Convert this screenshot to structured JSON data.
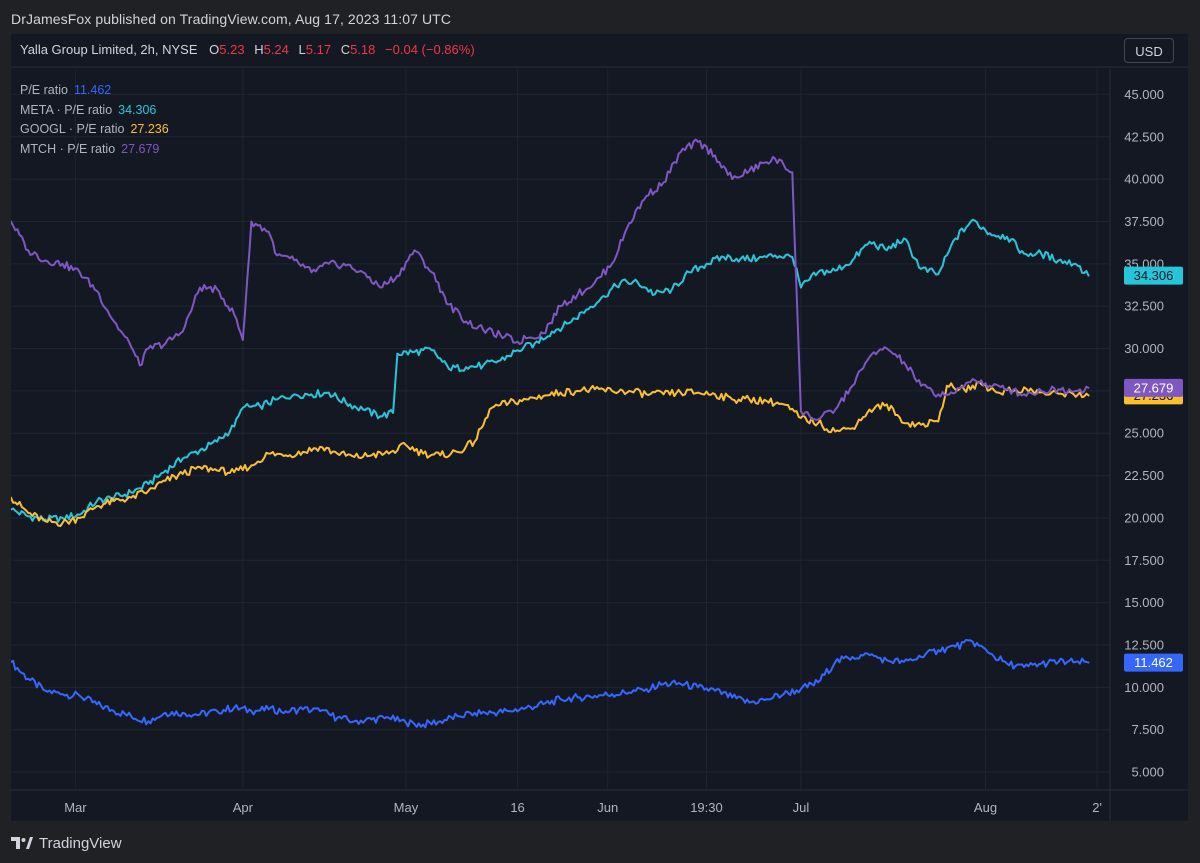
{
  "banner": "DrJamesFox published on TradingView.com, Aug 17, 2023 11:07 UTC",
  "header": {
    "symbol": "Yalla Group Limited, 2h, NYSE",
    "open_label": "O",
    "open": "5.23",
    "high_label": "H",
    "high": "5.24",
    "low_label": "L",
    "low": "5.17",
    "close_label": "C",
    "close": "5.18",
    "change": "−0.04 (−0.86%)"
  },
  "currency_button": "USD",
  "legend": [
    {
      "name": "P/E ratio",
      "value": "11.462",
      "color": "#3567ff"
    },
    {
      "name": "META · P/E ratio",
      "value": "34.306",
      "color": "#26c6da"
    },
    {
      "name": "GOOGL · P/E ratio",
      "value": "27.236",
      "color": "#fbc02d"
    },
    {
      "name": "MTCH · P/E ratio",
      "value": "27.679",
      "color": "#7e57c2"
    }
  ],
  "footer": {
    "brand": "TradingView"
  },
  "chart_data": {
    "type": "line",
    "y_ticks": [
      "45.000",
      "42.500",
      "40.000",
      "37.500",
      "35.000",
      "32.500",
      "30.000",
      "27.500",
      "25.000",
      "22.500",
      "20.000",
      "17.500",
      "15.000",
      "12.500",
      "10.000",
      "7.500",
      "5.000"
    ],
    "ylim": [
      4.0,
      46.5
    ],
    "x_ticks": [
      {
        "label": "Mar",
        "x": 15
      },
      {
        "label": "Apr",
        "x": 54
      },
      {
        "label": "May",
        "x": 92
      },
      {
        "label": "16",
        "x": 118
      },
      {
        "label": "Jun",
        "x": 139
      },
      {
        "label": "19:30",
        "x": 162
      },
      {
        "label": "Jul",
        "x": 184
      },
      {
        "label": "Aug",
        "x": 227
      },
      {
        "label": "2'",
        "x": 253
      }
    ],
    "xlim": [
      0,
      256
    ],
    "grid": true,
    "series": [
      {
        "name": "P/E ratio",
        "color": "#3567ff",
        "last": 11.462,
        "last_label": "11.462",
        "points": [
          [
            0,
            11.5
          ],
          [
            4,
            10.5
          ],
          [
            8,
            9.8
          ],
          [
            12,
            9.6
          ],
          [
            16,
            9.5
          ],
          [
            20,
            9.0
          ],
          [
            24,
            8.6
          ],
          [
            28,
            8.3
          ],
          [
            32,
            8.0
          ],
          [
            36,
            8.5
          ],
          [
            40,
            8.5
          ],
          [
            44,
            8.4
          ],
          [
            48,
            8.6
          ],
          [
            52,
            8.8
          ],
          [
            56,
            8.6
          ],
          [
            60,
            8.7
          ],
          [
            64,
            8.6
          ],
          [
            68,
            8.7
          ],
          [
            72,
            8.6
          ],
          [
            76,
            8.2
          ],
          [
            80,
            8.0
          ],
          [
            84,
            8.1
          ],
          [
            88,
            8.2
          ],
          [
            92,
            7.9
          ],
          [
            96,
            7.8
          ],
          [
            100,
            8.0
          ],
          [
            104,
            8.3
          ],
          [
            108,
            8.5
          ],
          [
            112,
            8.5
          ],
          [
            116,
            8.6
          ],
          [
            120,
            8.8
          ],
          [
            124,
            9.0
          ],
          [
            128,
            9.3
          ],
          [
            132,
            9.4
          ],
          [
            136,
            9.5
          ],
          [
            140,
            9.6
          ],
          [
            144,
            9.7
          ],
          [
            148,
            9.9
          ],
          [
            152,
            10.2
          ],
          [
            156,
            10.2
          ],
          [
            160,
            10.0
          ],
          [
            164,
            9.8
          ],
          [
            168,
            9.4
          ],
          [
            172,
            9.1
          ],
          [
            176,
            9.3
          ],
          [
            180,
            9.6
          ],
          [
            184,
            9.9
          ],
          [
            188,
            10.3
          ],
          [
            192,
            11.5
          ],
          [
            196,
            11.8
          ],
          [
            200,
            11.9
          ],
          [
            204,
            11.6
          ],
          [
            208,
            11.5
          ],
          [
            212,
            11.8
          ],
          [
            216,
            12.2
          ],
          [
            220,
            12.4
          ],
          [
            224,
            12.7
          ],
          [
            228,
            12.0
          ],
          [
            232,
            11.4
          ],
          [
            236,
            11.2
          ],
          [
            240,
            11.4
          ],
          [
            244,
            11.5
          ],
          [
            248,
            11.5
          ],
          [
            251,
            11.462
          ]
        ]
      },
      {
        "name": "META · P/E ratio",
        "color": "#26c6da",
        "last": 34.306,
        "last_label": "34.306",
        "points": [
          [
            0,
            20.5
          ],
          [
            4,
            20.1
          ],
          [
            8,
            19.9
          ],
          [
            12,
            20.0
          ],
          [
            16,
            20.2
          ],
          [
            20,
            21.0
          ],
          [
            24,
            21.2
          ],
          [
            28,
            21.5
          ],
          [
            32,
            22.0
          ],
          [
            36,
            22.8
          ],
          [
            40,
            23.5
          ],
          [
            44,
            24.0
          ],
          [
            48,
            24.5
          ],
          [
            52,
            25.4
          ],
          [
            54,
            26.5
          ],
          [
            58,
            26.6
          ],
          [
            62,
            27.0
          ],
          [
            66,
            27.3
          ],
          [
            70,
            27.3
          ],
          [
            74,
            27.4
          ],
          [
            78,
            26.8
          ],
          [
            82,
            26.4
          ],
          [
            86,
            26.0
          ],
          [
            89,
            26.2
          ],
          [
            90,
            29.7
          ],
          [
            94,
            29.8
          ],
          [
            98,
            29.9
          ],
          [
            102,
            28.8
          ],
          [
            106,
            28.9
          ],
          [
            110,
            29.0
          ],
          [
            114,
            29.3
          ],
          [
            118,
            29.9
          ],
          [
            122,
            30.3
          ],
          [
            126,
            31.0
          ],
          [
            130,
            31.5
          ],
          [
            134,
            32.3
          ],
          [
            138,
            33.1
          ],
          [
            142,
            33.9
          ],
          [
            146,
            33.9
          ],
          [
            150,
            33.2
          ],
          [
            154,
            33.5
          ],
          [
            158,
            34.5
          ],
          [
            162,
            35.0
          ],
          [
            166,
            35.4
          ],
          [
            170,
            35.3
          ],
          [
            174,
            35.3
          ],
          [
            178,
            35.5
          ],
          [
            182,
            35.4
          ],
          [
            184,
            33.6
          ],
          [
            188,
            34.5
          ],
          [
            192,
            34.6
          ],
          [
            196,
            35.2
          ],
          [
            200,
            36.3
          ],
          [
            204,
            35.8
          ],
          [
            208,
            36.5
          ],
          [
            212,
            34.7
          ],
          [
            216,
            34.4
          ],
          [
            220,
            36.5
          ],
          [
            224,
            37.6
          ],
          [
            228,
            36.8
          ],
          [
            232,
            36.6
          ],
          [
            236,
            35.6
          ],
          [
            240,
            35.6
          ],
          [
            244,
            35.2
          ],
          [
            248,
            35.0
          ],
          [
            251,
            34.306
          ]
        ]
      },
      {
        "name": "GOOGL · P/E ratio",
        "color": "#fbc02d",
        "last": 27.236,
        "last_label": "27.236",
        "points": [
          [
            0,
            21.2
          ],
          [
            4,
            20.3
          ],
          [
            8,
            19.8
          ],
          [
            12,
            19.7
          ],
          [
            16,
            20.0
          ],
          [
            20,
            20.7
          ],
          [
            24,
            21.0
          ],
          [
            28,
            21.2
          ],
          [
            32,
            21.6
          ],
          [
            36,
            22.2
          ],
          [
            40,
            22.6
          ],
          [
            44,
            23.0
          ],
          [
            48,
            22.8
          ],
          [
            52,
            22.7
          ],
          [
            56,
            23.1
          ],
          [
            60,
            23.8
          ],
          [
            64,
            23.7
          ],
          [
            68,
            23.9
          ],
          [
            72,
            24.2
          ],
          [
            76,
            23.8
          ],
          [
            80,
            23.6
          ],
          [
            84,
            23.7
          ],
          [
            88,
            23.8
          ],
          [
            92,
            24.3
          ],
          [
            96,
            23.8
          ],
          [
            100,
            23.7
          ],
          [
            104,
            23.9
          ],
          [
            108,
            24.5
          ],
          [
            112,
            26.5
          ],
          [
            116,
            26.8
          ],
          [
            120,
            27.0
          ],
          [
            124,
            27.2
          ],
          [
            128,
            27.4
          ],
          [
            132,
            27.5
          ],
          [
            136,
            27.6
          ],
          [
            140,
            27.5
          ],
          [
            144,
            27.5
          ],
          [
            148,
            27.3
          ],
          [
            152,
            27.3
          ],
          [
            156,
            27.4
          ],
          [
            160,
            27.4
          ],
          [
            164,
            27.3
          ],
          [
            168,
            27.0
          ],
          [
            172,
            27.0
          ],
          [
            176,
            26.9
          ],
          [
            180,
            26.7
          ],
          [
            184,
            25.9
          ],
          [
            188,
            25.6
          ],
          [
            192,
            25.1
          ],
          [
            196,
            25.3
          ],
          [
            200,
            26.4
          ],
          [
            204,
            26.7
          ],
          [
            208,
            25.6
          ],
          [
            212,
            25.5
          ],
          [
            216,
            25.7
          ],
          [
            218,
            27.8
          ],
          [
            222,
            27.6
          ],
          [
            226,
            27.9
          ],
          [
            230,
            27.4
          ],
          [
            234,
            27.6
          ],
          [
            238,
            27.5
          ],
          [
            242,
            27.3
          ],
          [
            246,
            27.4
          ],
          [
            251,
            27.236
          ]
        ]
      },
      {
        "name": "MTCH · P/E ratio",
        "color": "#7e57c2",
        "last": 27.679,
        "last_label": "27.679",
        "points": [
          [
            0,
            37.5
          ],
          [
            4,
            35.8
          ],
          [
            8,
            35.2
          ],
          [
            12,
            35.0
          ],
          [
            16,
            34.5
          ],
          [
            20,
            33.4
          ],
          [
            24,
            31.6
          ],
          [
            28,
            30.1
          ],
          [
            30,
            29.0
          ],
          [
            32,
            30.0
          ],
          [
            36,
            30.3
          ],
          [
            40,
            31.0
          ],
          [
            44,
            33.6
          ],
          [
            48,
            33.5
          ],
          [
            52,
            32.0
          ],
          [
            54,
            30.5
          ],
          [
            56,
            37.5
          ],
          [
            60,
            36.9
          ],
          [
            62,
            35.5
          ],
          [
            66,
            35.2
          ],
          [
            70,
            34.5
          ],
          [
            74,
            35.0
          ],
          [
            78,
            34.9
          ],
          [
            82,
            34.5
          ],
          [
            86,
            33.6
          ],
          [
            90,
            34.3
          ],
          [
            94,
            35.8
          ],
          [
            98,
            34.5
          ],
          [
            102,
            32.6
          ],
          [
            106,
            31.6
          ],
          [
            110,
            31.1
          ],
          [
            114,
            30.8
          ],
          [
            118,
            30.4
          ],
          [
            120,
            30.6
          ],
          [
            124,
            30.9
          ],
          [
            128,
            32.5
          ],
          [
            132,
            33.2
          ],
          [
            136,
            33.9
          ],
          [
            140,
            35.0
          ],
          [
            144,
            37.4
          ],
          [
            148,
            39.0
          ],
          [
            152,
            39.8
          ],
          [
            156,
            41.6
          ],
          [
            160,
            42.2
          ],
          [
            164,
            41.4
          ],
          [
            168,
            40.0
          ],
          [
            172,
            40.5
          ],
          [
            176,
            41.0
          ],
          [
            178,
            41.2
          ],
          [
            182,
            40.4
          ],
          [
            184,
            26.3
          ],
          [
            188,
            25.8
          ],
          [
            192,
            26.4
          ],
          [
            196,
            27.8
          ],
          [
            200,
            29.5
          ],
          [
            204,
            30.0
          ],
          [
            208,
            29.2
          ],
          [
            212,
            27.8
          ],
          [
            216,
            27.3
          ],
          [
            220,
            27.4
          ],
          [
            224,
            28.2
          ],
          [
            228,
            27.8
          ],
          [
            232,
            27.6
          ],
          [
            236,
            27.3
          ],
          [
            240,
            27.5
          ],
          [
            244,
            27.6
          ],
          [
            248,
            27.5
          ],
          [
            251,
            27.679
          ]
        ]
      }
    ]
  }
}
